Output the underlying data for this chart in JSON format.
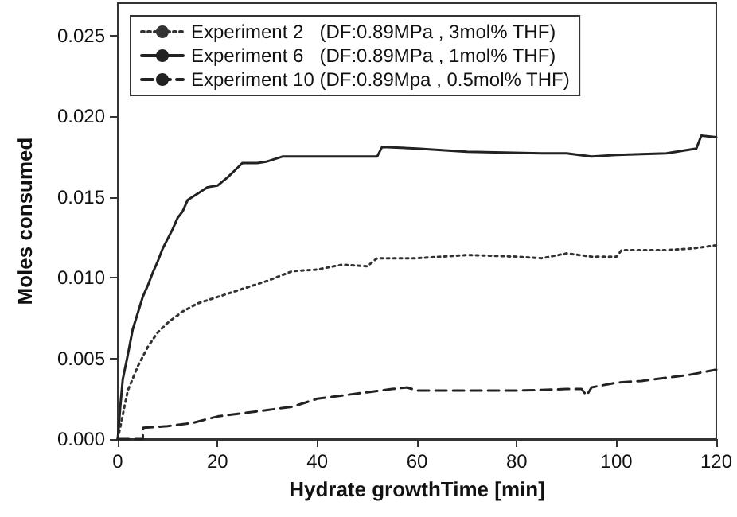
{
  "chart_data": {
    "type": "line",
    "xlabel": "Hydrate growthTime [min]",
    "ylabel": "Moles consumed",
    "xlim": [
      0,
      120
    ],
    "xticks": [
      0,
      20,
      40,
      60,
      80,
      100,
      120
    ],
    "ylim": [
      0,
      0.027
    ],
    "yticks": [
      {
        "value": 0,
        "label": "0.000"
      },
      {
        "value": 0.005,
        "label": "0.005"
      },
      {
        "value": 0.01,
        "label": "0.010"
      },
      {
        "value": 0.015,
        "label": "0.015"
      },
      {
        "value": 0.02,
        "label": "0.020"
      },
      {
        "value": 0.025,
        "label": "0.025"
      }
    ],
    "grid": false,
    "legend": "top left",
    "marker": "none",
    "series": [
      {
        "name": "Experiment 2   (DF:0.89MPa , 3mol% THF)",
        "color": "#333333",
        "line_style": "dotted",
        "x": [
          0,
          1,
          2,
          4,
          6,
          8,
          10,
          13,
          16,
          20,
          25,
          30,
          35,
          40,
          45,
          50,
          52,
          60,
          70,
          80,
          85,
          90,
          95,
          100,
          101,
          110,
          115,
          120
        ],
        "values": [
          0,
          0.0015,
          0.003,
          0.0045,
          0.0057,
          0.0066,
          0.0072,
          0.0079,
          0.0084,
          0.0088,
          0.0093,
          0.0098,
          0.0104,
          0.0105,
          0.0108,
          0.0107,
          0.0112,
          0.0112,
          0.0114,
          0.0113,
          0.0112,
          0.0115,
          0.0113,
          0.0113,
          0.0117,
          0.0117,
          0.0118,
          0.012
        ]
      },
      {
        "name": "Experiment 6   (DF:0.89MPa , 1mol% THF)",
        "color": "#222222",
        "line_style": "solid",
        "x": [
          0,
          0.5,
          1,
          2,
          3,
          4,
          5,
          6,
          7,
          8,
          9,
          10,
          11,
          12,
          13,
          14,
          16,
          18,
          20,
          22,
          24,
          25,
          28,
          30,
          33,
          52,
          53,
          60,
          65,
          70,
          85,
          90,
          95,
          100,
          110,
          116,
          117,
          120
        ],
        "values": [
          0,
          0.002,
          0.0037,
          0.0052,
          0.0068,
          0.0078,
          0.0088,
          0.0095,
          0.0103,
          0.011,
          0.0118,
          0.0124,
          0.013,
          0.0137,
          0.0141,
          0.0148,
          0.0152,
          0.0156,
          0.0157,
          0.0162,
          0.0168,
          0.0171,
          0.0171,
          0.0172,
          0.0175,
          0.0175,
          0.0181,
          0.018,
          0.0179,
          0.0178,
          0.0177,
          0.0177,
          0.0175,
          0.0176,
          0.0177,
          0.018,
          0.0188,
          0.0187
        ]
      },
      {
        "name": "Experiment 10 (DF:0.89Mpa , 0.5mol% THF)",
        "color": "#222222",
        "line_style": "dashed",
        "x": [
          0,
          5,
          5.1,
          10,
          15,
          20,
          25,
          30,
          35,
          40,
          45,
          50,
          55,
          58,
          60,
          70,
          80,
          90,
          93,
          94,
          95,
          100,
          105,
          110,
          115,
          120
        ],
        "values": [
          0,
          0,
          0.0007,
          0.0008,
          0.001,
          0.0014,
          0.0016,
          0.0018,
          0.002,
          0.0025,
          0.0027,
          0.0029,
          0.0031,
          0.0032,
          0.003,
          0.003,
          0.003,
          0.0031,
          0.0031,
          0.0027,
          0.0032,
          0.0035,
          0.0036,
          0.0038,
          0.004,
          0.0043
        ]
      }
    ]
  }
}
